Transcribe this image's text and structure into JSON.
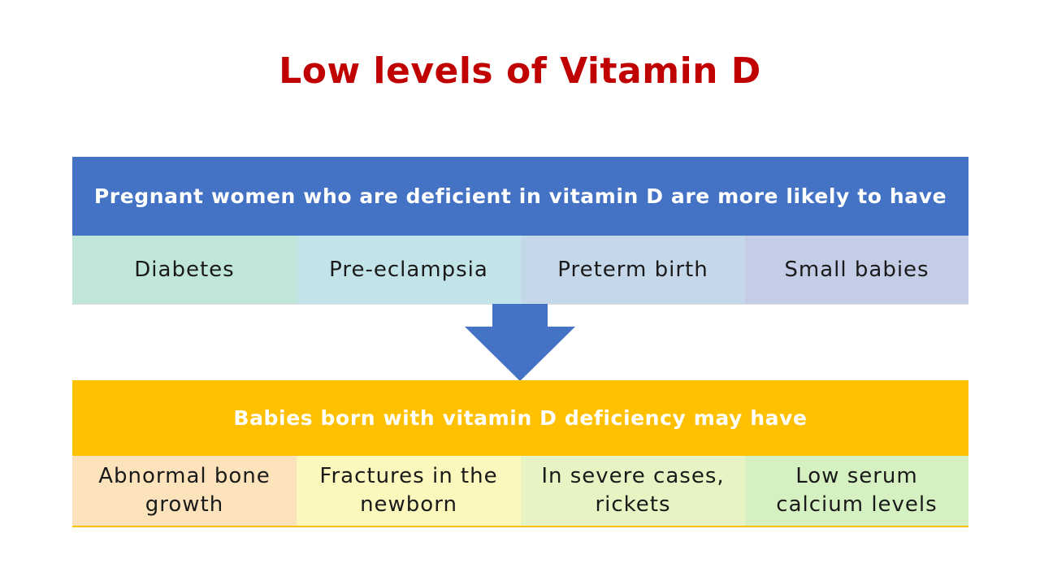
{
  "title": "Low levels of Vitamin D",
  "colors": {
    "title": "#c00000",
    "top_header": "#4472c4",
    "bottom_header": "#ffc000",
    "arrow": "#4472c4"
  },
  "top": {
    "header": "Pregnant women who are deficient in vitamin D are more likely to have",
    "items": [
      {
        "label": "Diabetes",
        "color": "#c0e6da"
      },
      {
        "label": "Pre-eclampsia",
        "color": "#c2e4e8"
      },
      {
        "label": "Preterm birth",
        "color": "#c4d8ea"
      },
      {
        "label": "Small babies",
        "color": "#c4cde6"
      }
    ]
  },
  "arrow_icon": "down-arrow-icon",
  "bottom": {
    "header": "Babies born with vitamin D deficiency may have",
    "items": [
      {
        "label": "Abnormal bone growth",
        "color": "#fde3bb"
      },
      {
        "label": "Fractures in the newborn",
        "color": "#fbf7bd"
      },
      {
        "label": "In severe cases, rickets",
        "color": "#e7f3c3"
      },
      {
        "label": "Low serum calcium levels",
        "color": "#d5f0c1"
      }
    ]
  }
}
